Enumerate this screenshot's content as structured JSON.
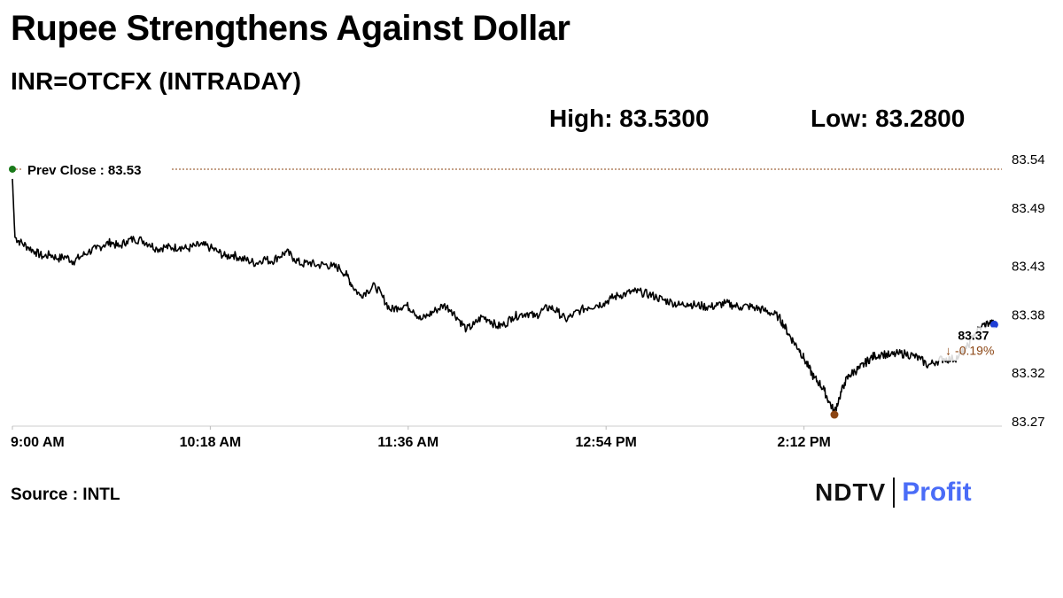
{
  "header": {
    "title": "Rupee Strengthens Against Dollar",
    "subtitle": "INR=OTCFX (INTRADAY)",
    "high_label": "High: 83.5300",
    "low_label": "Low: 83.2800"
  },
  "footer": {
    "source": "Source : INTL",
    "logo_ndtv": "NDTV",
    "logo_profit": "Profit"
  },
  "colors": {
    "line": "#000000",
    "prev_close_line": "#8b4513",
    "start_marker": "#1a7a1a",
    "low_marker": "#8b4513",
    "last_marker": "#1f3fd6",
    "change_text": "#8b4513"
  },
  "chart_data": {
    "type": "line",
    "title": "Rupee Strengthens Against Dollar",
    "series_name": "INR=OTCFX",
    "xlabel": "",
    "ylabel": "",
    "x_ticks": [
      "9:00 AM",
      "10:18 AM",
      "11:36 AM",
      "12:54 PM",
      "2:12 PM"
    ],
    "y_ticks": [
      83.54,
      83.49,
      83.43,
      83.38,
      83.32,
      83.27
    ],
    "y_tick_labels": [
      "83.54",
      "83.49",
      "83.43",
      "83.38",
      "83.32",
      "83.27"
    ],
    "ylim": [
      83.27,
      83.54
    ],
    "x_range_minutes": [
      0,
      390
    ],
    "prev_close": 83.53,
    "prev_close_label": "Prev Close : 83.53",
    "last_value_label": "83.37",
    "change_label": "↓ -0.19%",
    "grid": false,
    "points": [
      [
        0,
        83.52
      ],
      [
        1,
        83.46
      ],
      [
        3,
        83.455
      ],
      [
        6,
        83.45
      ],
      [
        9,
        83.445
      ],
      [
        12,
        83.44
      ],
      [
        15,
        83.442
      ],
      [
        18,
        83.438
      ],
      [
        21,
        83.44
      ],
      [
        24,
        83.435
      ],
      [
        27,
        83.44
      ],
      [
        30,
        83.445
      ],
      [
        33,
        83.448
      ],
      [
        36,
        83.452
      ],
      [
        39,
        83.455
      ],
      [
        42,
        83.45
      ],
      [
        45,
        83.456
      ],
      [
        48,
        83.458
      ],
      [
        51,
        83.457
      ],
      [
        54,
        83.453
      ],
      [
        57,
        83.448
      ],
      [
        60,
        83.45
      ],
      [
        63,
        83.449
      ],
      [
        66,
        83.45
      ],
      [
        69,
        83.448
      ],
      [
        72,
        83.451
      ],
      [
        75,
        83.452
      ],
      [
        78,
        83.449
      ],
      [
        81,
        83.445
      ],
      [
        84,
        83.44
      ],
      [
        87,
        83.442
      ],
      [
        90,
        83.438
      ],
      [
        93,
        83.436
      ],
      [
        96,
        83.433
      ],
      [
        99,
        83.438
      ],
      [
        102,
        83.435
      ],
      [
        105,
        83.44
      ],
      [
        108,
        83.445
      ],
      [
        111,
        83.438
      ],
      [
        114,
        83.432
      ],
      [
        117,
        83.434
      ],
      [
        120,
        83.431
      ],
      [
        123,
        83.432
      ],
      [
        126,
        83.43
      ],
      [
        129,
        83.428
      ],
      [
        132,
        83.42
      ],
      [
        134,
        83.41
      ],
      [
        137,
        83.4
      ],
      [
        140,
        83.405
      ],
      [
        143,
        83.41
      ],
      [
        146,
        83.398
      ],
      [
        149,
        83.385
      ],
      [
        152,
        83.388
      ],
      [
        155,
        83.39
      ],
      [
        158,
        83.385
      ],
      [
        161,
        83.375
      ],
      [
        164,
        83.38
      ],
      [
        167,
        83.385
      ],
      [
        170,
        83.39
      ],
      [
        173,
        83.385
      ],
      [
        176,
        83.375
      ],
      [
        179,
        83.365
      ],
      [
        182,
        83.37
      ],
      [
        185,
        83.378
      ],
      [
        188,
        83.375
      ],
      [
        191,
        83.368
      ],
      [
        194,
        83.37
      ],
      [
        197,
        83.378
      ],
      [
        200,
        83.38
      ],
      [
        203,
        83.382
      ],
      [
        206,
        83.378
      ],
      [
        209,
        83.385
      ],
      [
        212,
        83.388
      ],
      [
        215,
        83.383
      ],
      [
        218,
        83.375
      ],
      [
        221,
        83.38
      ],
      [
        224,
        83.385
      ],
      [
        227,
        83.388
      ],
      [
        230,
        83.39
      ],
      [
        233,
        83.392
      ],
      [
        236,
        83.397
      ],
      [
        239,
        83.4
      ],
      [
        242,
        83.402
      ],
      [
        245,
        83.404
      ],
      [
        248,
        83.403
      ],
      [
        251,
        83.401
      ],
      [
        254,
        83.398
      ],
      [
        257,
        83.395
      ],
      [
        260,
        83.393
      ],
      [
        263,
        83.39
      ],
      [
        266,
        83.392
      ],
      [
        269,
        83.39
      ],
      [
        272,
        83.389
      ],
      [
        275,
        83.388
      ],
      [
        278,
        83.39
      ],
      [
        281,
        83.392
      ],
      [
        284,
        83.39
      ],
      [
        287,
        83.388
      ],
      [
        290,
        83.389
      ],
      [
        293,
        83.387
      ],
      [
        296,
        83.385
      ],
      [
        299,
        83.382
      ],
      [
        302,
        83.378
      ],
      [
        304,
        83.37
      ],
      [
        306,
        83.36
      ],
      [
        308,
        83.352
      ],
      [
        310,
        83.345
      ],
      [
        312,
        83.335
      ],
      [
        314,
        83.325
      ],
      [
        316,
        83.315
      ],
      [
        318,
        83.31
      ],
      [
        320,
        83.302
      ],
      [
        322,
        83.29
      ],
      [
        324,
        83.28
      ],
      [
        326,
        83.295
      ],
      [
        328,
        83.31
      ],
      [
        330,
        83.318
      ],
      [
        332,
        83.322
      ],
      [
        334,
        83.325
      ],
      [
        336,
        83.33
      ],
      [
        338,
        83.335
      ],
      [
        340,
        83.338
      ],
      [
        343,
        83.34
      ],
      [
        346,
        83.338
      ],
      [
        349,
        83.34
      ],
      [
        352,
        83.34
      ],
      [
        355,
        83.338
      ],
      [
        358,
        83.334
      ],
      [
        361,
        83.328
      ],
      [
        364,
        83.332
      ],
      [
        367,
        83.335
      ],
      [
        370,
        83.334
      ],
      [
        373,
        83.337
      ],
      [
        376,
        83.345
      ],
      [
        379,
        83.36
      ],
      [
        382,
        83.368
      ],
      [
        385,
        83.372
      ],
      [
        387,
        83.37
      ]
    ]
  }
}
